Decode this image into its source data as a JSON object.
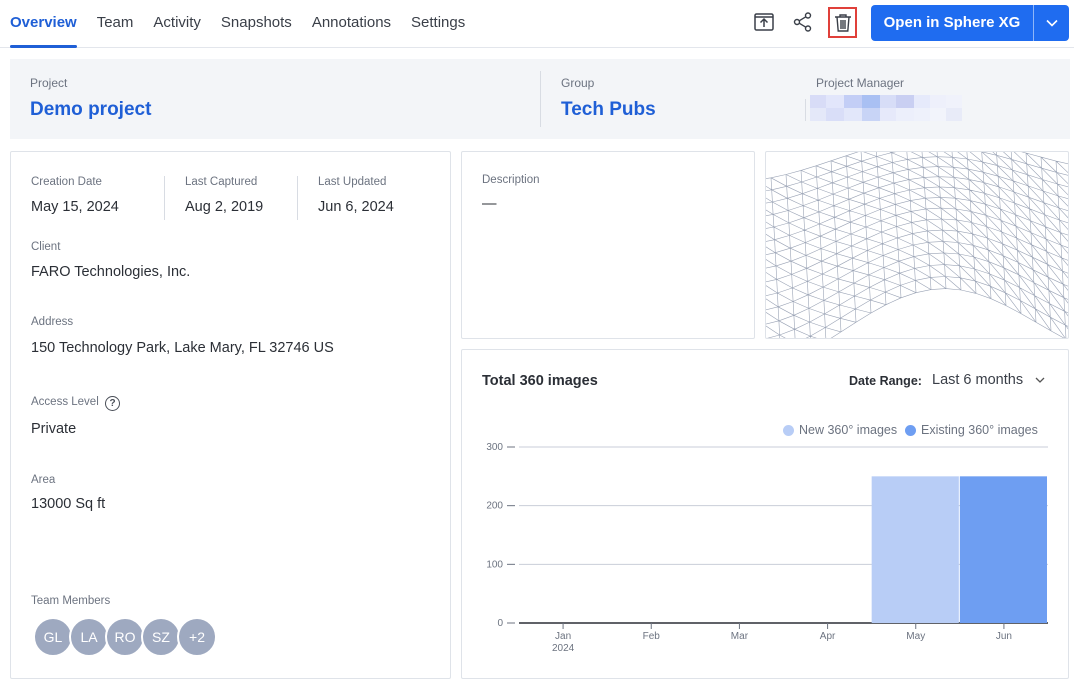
{
  "nav": {
    "tabs": [
      {
        "label": "Overview",
        "active": true
      },
      {
        "label": "Team"
      },
      {
        "label": "Activity"
      },
      {
        "label": "Snapshots"
      },
      {
        "label": "Annotations"
      },
      {
        "label": "Settings"
      }
    ],
    "tools": [
      "export-icon",
      "share-icon",
      "trash-icon"
    ],
    "open_button": "Open in Sphere XG",
    "accent": "#1f6cf0"
  },
  "project": {
    "project_label": "Project",
    "project_name": "Demo project",
    "group_label": "Group",
    "group_name": "Tech Pubs",
    "manager_label": "Project Manager"
  },
  "details": {
    "creation_label": "Creation Date",
    "creation_value": "May 15, 2024",
    "captured_label": "Last Captured",
    "captured_value": "Aug 2, 2019",
    "updated_label": "Last Updated",
    "updated_value": "Jun 6, 2024",
    "client_label": "Client",
    "client_value": "FARO Technologies, Inc.",
    "address_label": "Address",
    "address_value": "150 Technology Park, Lake Mary, FL 32746 US",
    "access_label": "Access Level",
    "access_value": "Private",
    "area_label": "Area",
    "area_value": "13000 Sq ft",
    "team_label": "Team Members",
    "team": [
      "GL",
      "LA",
      "RO",
      "SZ",
      "+2"
    ]
  },
  "description": {
    "label": "Description",
    "value": "—"
  },
  "chart": {
    "title": "Total 360 images",
    "range_label": "Date Range:",
    "range_value": "Last 6 months"
  },
  "chart_data": {
    "type": "bar",
    "categories": [
      "Jan",
      "Feb",
      "Mar",
      "Apr",
      "May",
      "Jun"
    ],
    "year_label": "2024",
    "series": [
      {
        "name": "New 360° images",
        "color": "#b8cdf6",
        "values": [
          0,
          0,
          0,
          0,
          250,
          0
        ]
      },
      {
        "name": "Existing 360° images",
        "color": "#6e9ef2",
        "values": [
          0,
          0,
          0,
          0,
          0,
          250
        ]
      }
    ],
    "yticks": [
      0,
      100,
      200,
      300
    ],
    "ylim": [
      0,
      300
    ],
    "grid": true,
    "legend": "top-right"
  }
}
